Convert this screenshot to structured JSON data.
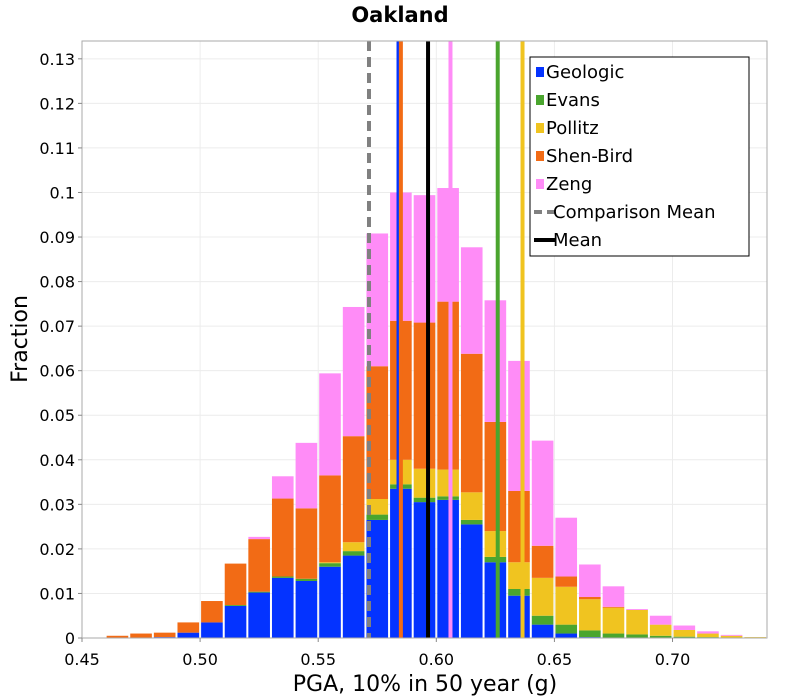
{
  "chart_data": {
    "type": "bar",
    "stacked": true,
    "title": "Oakland",
    "xlabel": "PGA, 10% in 50 year (g)",
    "ylabel": "Fraction",
    "xlim": [
      0.45,
      0.74
    ],
    "ylim": [
      0,
      0.134
    ],
    "xticks": [
      "0.45",
      "0.50",
      "0.55",
      "0.60",
      "0.65",
      "0.70"
    ],
    "yticks": [
      "0",
      "0.01",
      "0.02",
      "0.03",
      "0.04",
      "0.05",
      "0.06",
      "0.07",
      "0.08",
      "0.09",
      "0.1",
      "0.11",
      "0.12",
      "0.13"
    ],
    "grid": true,
    "legend_position": "top-right",
    "bin_width": 0.01,
    "bin_starts": [
      0.45,
      0.46,
      0.47,
      0.48,
      0.49,
      0.5,
      0.51,
      0.52,
      0.53,
      0.54,
      0.55,
      0.56,
      0.57,
      0.58,
      0.59,
      0.6,
      0.61,
      0.62,
      0.63,
      0.64,
      0.65,
      0.66,
      0.67,
      0.68,
      0.69,
      0.7,
      0.71,
      0.72,
      0.73
    ],
    "series": [
      {
        "name": "Geologic",
        "color": "#0433ff",
        "values": [
          0,
          0,
          0,
          0.0002,
          0.0012,
          0.0035,
          0.0072,
          0.0102,
          0.0135,
          0.0128,
          0.016,
          0.0185,
          0.0265,
          0.0335,
          0.0305,
          0.031,
          0.0255,
          0.017,
          0.0095,
          0.003,
          0.001,
          0.0002,
          0,
          0,
          0,
          0,
          0,
          0,
          0
        ]
      },
      {
        "name": "Evans",
        "color": "#4aa52e",
        "values": [
          0,
          0,
          0,
          0,
          0,
          0,
          0.0002,
          0.0002,
          0.0003,
          0.0005,
          0.0008,
          0.001,
          0.0012,
          0.001,
          0.001,
          0.0008,
          0.001,
          0.0012,
          0.0015,
          0.002,
          0.002,
          0.0015,
          0.001,
          0.0008,
          0.0005,
          0.0003,
          0.0002,
          0,
          0
        ]
      },
      {
        "name": "Pollitz",
        "color": "#f0c420",
        "values": [
          0,
          0,
          0,
          0,
          0,
          0,
          0,
          0,
          0,
          0,
          0.0002,
          0.002,
          0.0035,
          0.0055,
          0.0065,
          0.006,
          0.0062,
          0.0058,
          0.006,
          0.0085,
          0.0085,
          0.007,
          0.0058,
          0.0055,
          0.0025,
          0.0015,
          0.0008,
          0.0005,
          0.0002
        ]
      },
      {
        "name": "Shen-Bird",
        "color": "#f26b15",
        "values": [
          0,
          0.0005,
          0.001,
          0.001,
          0.0023,
          0.0048,
          0.0093,
          0.0118,
          0.0175,
          0.0158,
          0.0195,
          0.0238,
          0.0298,
          0.0312,
          0.0328,
          0.0377,
          0.0311,
          0.0245,
          0.016,
          0.0072,
          0.0023,
          0.0005,
          0.0002,
          0,
          0,
          0,
          0,
          0,
          0
        ]
      },
      {
        "name": "Zeng",
        "color": "#ff8cf7",
        "values": [
          0,
          0,
          0,
          0,
          0,
          0,
          0,
          0.0005,
          0.005,
          0.0147,
          0.0229,
          0.029,
          0.0298,
          0.0288,
          0.0286,
          0.0255,
          0.0239,
          0.0273,
          0.0292,
          0.0236,
          0.0132,
          0.0073,
          0.0046,
          0.0002,
          0.002,
          0.001,
          0.0005,
          0.0002,
          0
        ]
      }
    ],
    "vertical_lines": [
      {
        "name": "Geologic",
        "x": 0.584,
        "color": "#0433ff",
        "style": "solid"
      },
      {
        "name": "Shen-Bird",
        "x": 0.585,
        "color": "#f26b15",
        "style": "solid"
      },
      {
        "name": "Zeng",
        "x": 0.606,
        "color": "#ff8cf7",
        "style": "solid"
      },
      {
        "name": "Evans",
        "x": 0.626,
        "color": "#4aa52e",
        "style": "solid"
      },
      {
        "name": "Pollitz",
        "x": 0.6365,
        "color": "#f0c420",
        "style": "solid"
      },
      {
        "name": "Comparison Mean",
        "x": 0.5715,
        "color": "#808080",
        "style": "dashed"
      },
      {
        "name": "Mean",
        "x": 0.5965,
        "color": "#000000",
        "style": "solid"
      }
    ],
    "legend": [
      {
        "label": "Geologic",
        "kind": "box",
        "color": "#0433ff"
      },
      {
        "label": "Evans",
        "kind": "box",
        "color": "#4aa52e"
      },
      {
        "label": "Pollitz",
        "kind": "box",
        "color": "#f0c420"
      },
      {
        "label": "Shen-Bird",
        "kind": "box",
        "color": "#f26b15"
      },
      {
        "label": "Zeng",
        "kind": "box",
        "color": "#ff8cf7"
      },
      {
        "label": "Comparison Mean",
        "kind": "dashed",
        "color": "#808080"
      },
      {
        "label": "Mean",
        "kind": "line",
        "color": "#000000"
      }
    ]
  }
}
